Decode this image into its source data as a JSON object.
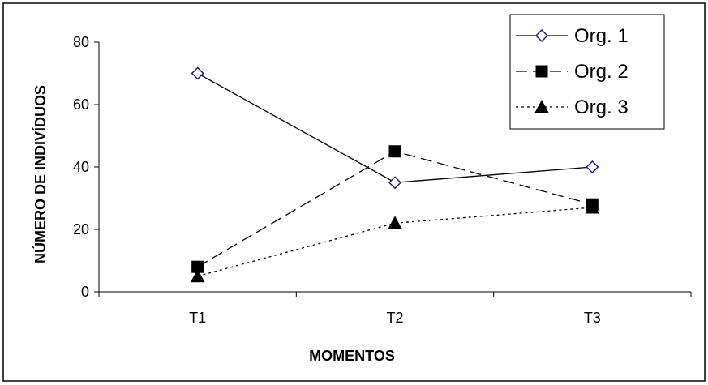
{
  "chart_data": {
    "type": "line",
    "title": "",
    "xlabel": "MOMENTOS",
    "ylabel": "NÚMERO DE INDIVÍDUOS",
    "categories": [
      "T1",
      "T2",
      "T3"
    ],
    "ylim": [
      0,
      80
    ],
    "yticks": [
      0,
      20,
      40,
      60,
      80
    ],
    "grid": false,
    "legend_position": "top-right",
    "series": [
      {
        "name": "Org. 1",
        "values": [
          70,
          35,
          40
        ],
        "color": "#000000",
        "line_style": "solid",
        "marker": "open-diamond",
        "marker_color": "#1a1a8c"
      },
      {
        "name": "Org. 2",
        "values": [
          8,
          45,
          28
        ],
        "color": "#000000",
        "line_style": "dashed",
        "marker": "filled-square",
        "marker_color": "#000000"
      },
      {
        "name": "Org. 3",
        "values": [
          5,
          22,
          27
        ],
        "color": "#000000",
        "line_style": "dotted",
        "marker": "filled-triangle",
        "marker_color": "#000000"
      }
    ]
  }
}
